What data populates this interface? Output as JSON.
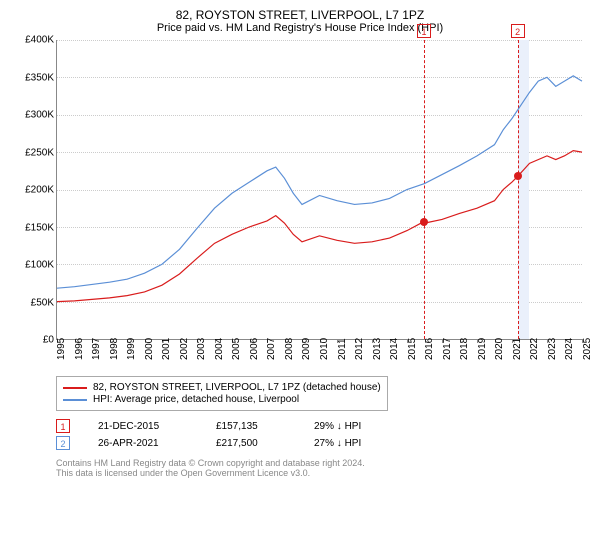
{
  "title": "82, ROYSTON STREET, LIVERPOOL, L7 1PZ",
  "subtitle": "Price paid vs. HM Land Registry's House Price Index (HPI)",
  "chart": {
    "type": "line",
    "background_color": "#ffffff",
    "grid_color": "#cccccc",
    "ylim": [
      0,
      400000
    ],
    "ytick_step": 50000,
    "yticks": [
      "£0",
      "£50K",
      "£100K",
      "£150K",
      "£200K",
      "£250K",
      "£300K",
      "£350K",
      "£400K"
    ],
    "xlim": [
      1995,
      2025
    ],
    "xticks": [
      1995,
      1996,
      1997,
      1998,
      1999,
      2000,
      2001,
      2002,
      2003,
      2004,
      2005,
      2006,
      2007,
      2008,
      2009,
      2010,
      2011,
      2012,
      2013,
      2014,
      2015,
      2016,
      2017,
      2018,
      2019,
      2020,
      2021,
      2022,
      2023,
      2024,
      2025
    ],
    "label_fontsize": 10,
    "line_width": 1.2,
    "series": [
      {
        "name": "82, ROYSTON STREET, LIVERPOOL, L7 1PZ (detached house)",
        "color": "#d91c1c",
        "data": [
          [
            1995,
            50000
          ],
          [
            1996,
            51000
          ],
          [
            1997,
            53000
          ],
          [
            1998,
            55000
          ],
          [
            1999,
            58000
          ],
          [
            2000,
            63000
          ],
          [
            2001,
            72000
          ],
          [
            2002,
            87000
          ],
          [
            2003,
            108000
          ],
          [
            2004,
            128000
          ],
          [
            2005,
            140000
          ],
          [
            2006,
            150000
          ],
          [
            2007,
            158000
          ],
          [
            2007.5,
            165000
          ],
          [
            2008,
            155000
          ],
          [
            2008.5,
            140000
          ],
          [
            2009,
            130000
          ],
          [
            2010,
            138000
          ],
          [
            2011,
            132000
          ],
          [
            2012,
            128000
          ],
          [
            2013,
            130000
          ],
          [
            2014,
            135000
          ],
          [
            2015,
            145000
          ],
          [
            2015.97,
            157135
          ],
          [
            2016,
            155000
          ],
          [
            2017,
            160000
          ],
          [
            2018,
            168000
          ],
          [
            2019,
            175000
          ],
          [
            2020,
            185000
          ],
          [
            2020.5,
            200000
          ],
          [
            2021,
            210000
          ],
          [
            2021.32,
            217500
          ],
          [
            2022,
            235000
          ],
          [
            2023,
            245000
          ],
          [
            2023.5,
            240000
          ],
          [
            2024,
            245000
          ],
          [
            2024.5,
            252000
          ],
          [
            2025,
            250000
          ]
        ]
      },
      {
        "name": "HPI: Average price, detached house, Liverpool",
        "color": "#5b8fd6",
        "data": [
          [
            1995,
            68000
          ],
          [
            1996,
            70000
          ],
          [
            1997,
            73000
          ],
          [
            1998,
            76000
          ],
          [
            1999,
            80000
          ],
          [
            2000,
            88000
          ],
          [
            2001,
            100000
          ],
          [
            2002,
            120000
          ],
          [
            2003,
            148000
          ],
          [
            2004,
            175000
          ],
          [
            2005,
            195000
          ],
          [
            2006,
            210000
          ],
          [
            2007,
            225000
          ],
          [
            2007.5,
            230000
          ],
          [
            2008,
            215000
          ],
          [
            2008.5,
            195000
          ],
          [
            2009,
            180000
          ],
          [
            2010,
            192000
          ],
          [
            2011,
            185000
          ],
          [
            2012,
            180000
          ],
          [
            2013,
            182000
          ],
          [
            2014,
            188000
          ],
          [
            2015,
            200000
          ],
          [
            2016,
            208000
          ],
          [
            2017,
            220000
          ],
          [
            2018,
            232000
          ],
          [
            2019,
            245000
          ],
          [
            2020,
            260000
          ],
          [
            2020.5,
            280000
          ],
          [
            2021,
            295000
          ],
          [
            2022,
            330000
          ],
          [
            2022.5,
            345000
          ],
          [
            2023,
            350000
          ],
          [
            2023.5,
            338000
          ],
          [
            2024,
            345000
          ],
          [
            2024.5,
            352000
          ],
          [
            2025,
            345000
          ]
        ]
      }
    ],
    "sale_markers": [
      {
        "n": "1",
        "x": 2015.97,
        "y": 157135,
        "color": "#d91c1c",
        "band_color": "#fbeaea"
      },
      {
        "n": "2",
        "x": 2021.32,
        "y": 217500,
        "color": "#d91c1c",
        "band_color": "#eaf0fb",
        "band_end": 2022
      }
    ]
  },
  "legend": {
    "border_color": "#aaaaaa",
    "items": [
      {
        "color": "#d91c1c",
        "label": "82, ROYSTON STREET, LIVERPOOL, L7 1PZ (detached house)"
      },
      {
        "color": "#5b8fd6",
        "label": "HPI: Average price, detached house, Liverpool"
      }
    ]
  },
  "sales": [
    {
      "n": "1",
      "color": "#d91c1c",
      "date": "21-DEC-2015",
      "price": "£157,135",
      "pct": "29% ↓ HPI"
    },
    {
      "n": "2",
      "color": "#5b8fd6",
      "date": "26-APR-2021",
      "price": "£217,500",
      "pct": "27% ↓ HPI"
    }
  ],
  "footer1": "Contains HM Land Registry data © Crown copyright and database right 2024.",
  "footer2": "This data is licensed under the Open Government Licence v3.0."
}
